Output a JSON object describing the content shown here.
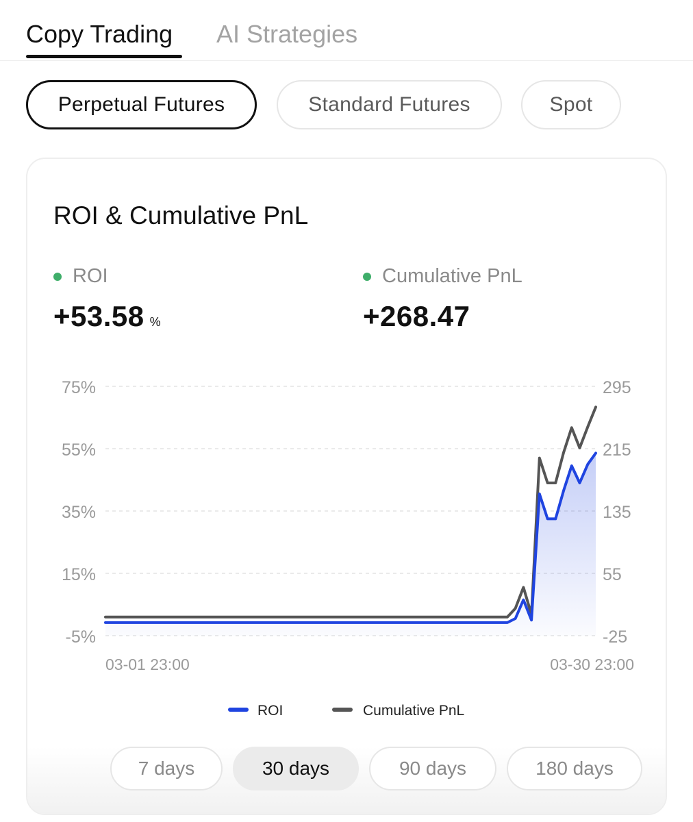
{
  "top_tabs": [
    {
      "label": "Copy Trading",
      "active": true
    },
    {
      "label": "AI Strategies",
      "active": false
    }
  ],
  "market_pills": [
    {
      "label": "Perpetual Futures",
      "active": true
    },
    {
      "label": "Standard Futures",
      "active": false
    },
    {
      "label": "Spot",
      "active": false
    }
  ],
  "card": {
    "title": "ROI & Cumulative PnL",
    "roi_label": "ROI",
    "roi_value": "+53.58",
    "roi_unit": "%",
    "pnl_label": "Cumulative PnL",
    "pnl_value": "+268.47"
  },
  "chart_data": {
    "type": "line",
    "x_labels": [
      "03-01 23:00",
      "03-30 23:00"
    ],
    "left_axis": {
      "ticks": [
        "75%",
        "55%",
        "35%",
        "15%",
        "-5%"
      ],
      "min": -5,
      "max": 75
    },
    "right_axis": {
      "ticks": [
        "295",
        "215",
        "135",
        "55",
        "-25"
      ],
      "min": -25,
      "max": 295
    },
    "grid": true,
    "legend_position": "bottom",
    "series": [
      {
        "name": "ROI",
        "axis": "left",
        "color": "#1f44e0",
        "fill": true,
        "values": [
          -0.8,
          -0.8,
          -0.8,
          -0.8,
          -0.8,
          -0.8,
          -0.8,
          -0.8,
          -0.8,
          -0.8,
          -0.8,
          -0.8,
          -0.8,
          -0.8,
          -0.8,
          -0.8,
          -0.8,
          -0.8,
          -0.8,
          -0.8,
          -0.8,
          -0.8,
          -0.8,
          -0.8,
          -0.8,
          -0.8,
          -0.8,
          -0.8,
          -0.8,
          -0.8,
          -0.8,
          -0.8,
          -0.8,
          -0.8,
          -0.8,
          -0.8,
          -0.8,
          -0.8,
          -0.8,
          -0.8,
          -0.8,
          -0.8,
          -0.8,
          -0.8,
          -0.8,
          -0.8,
          -0.8,
          -0.8,
          -0.8,
          -0.8,
          -0.8,
          0.5,
          6.5,
          0,
          40.5,
          32.5,
          32.5,
          41.5,
          49.5,
          44,
          50,
          53.58
        ]
      },
      {
        "name": "Cumulative PnL",
        "axis": "right",
        "color": "#555555",
        "fill": false,
        "values": [
          -1,
          -1,
          -1,
          -1,
          -1,
          -1,
          -1,
          -1,
          -1,
          -1,
          -1,
          -1,
          -1,
          -1,
          -1,
          -1,
          -1,
          -1,
          -1,
          -1,
          -1,
          -1,
          -1,
          -1,
          -1,
          -1,
          -1,
          -1,
          -1,
          -1,
          -1,
          -1,
          -1,
          -1,
          -1,
          -1,
          -1,
          -1,
          -1,
          -1,
          -1,
          -1,
          -1,
          -1,
          -1,
          -1,
          -1,
          -1,
          -1,
          -1,
          -1,
          10,
          37,
          2,
          203,
          171,
          171,
          210,
          242,
          216,
          243,
          268.47
        ]
      }
    ]
  },
  "ranges": [
    {
      "label": "7 days",
      "active": false
    },
    {
      "label": "30 days",
      "active": true
    },
    {
      "label": "90 days",
      "active": false
    },
    {
      "label": "180 days",
      "active": false
    }
  ]
}
